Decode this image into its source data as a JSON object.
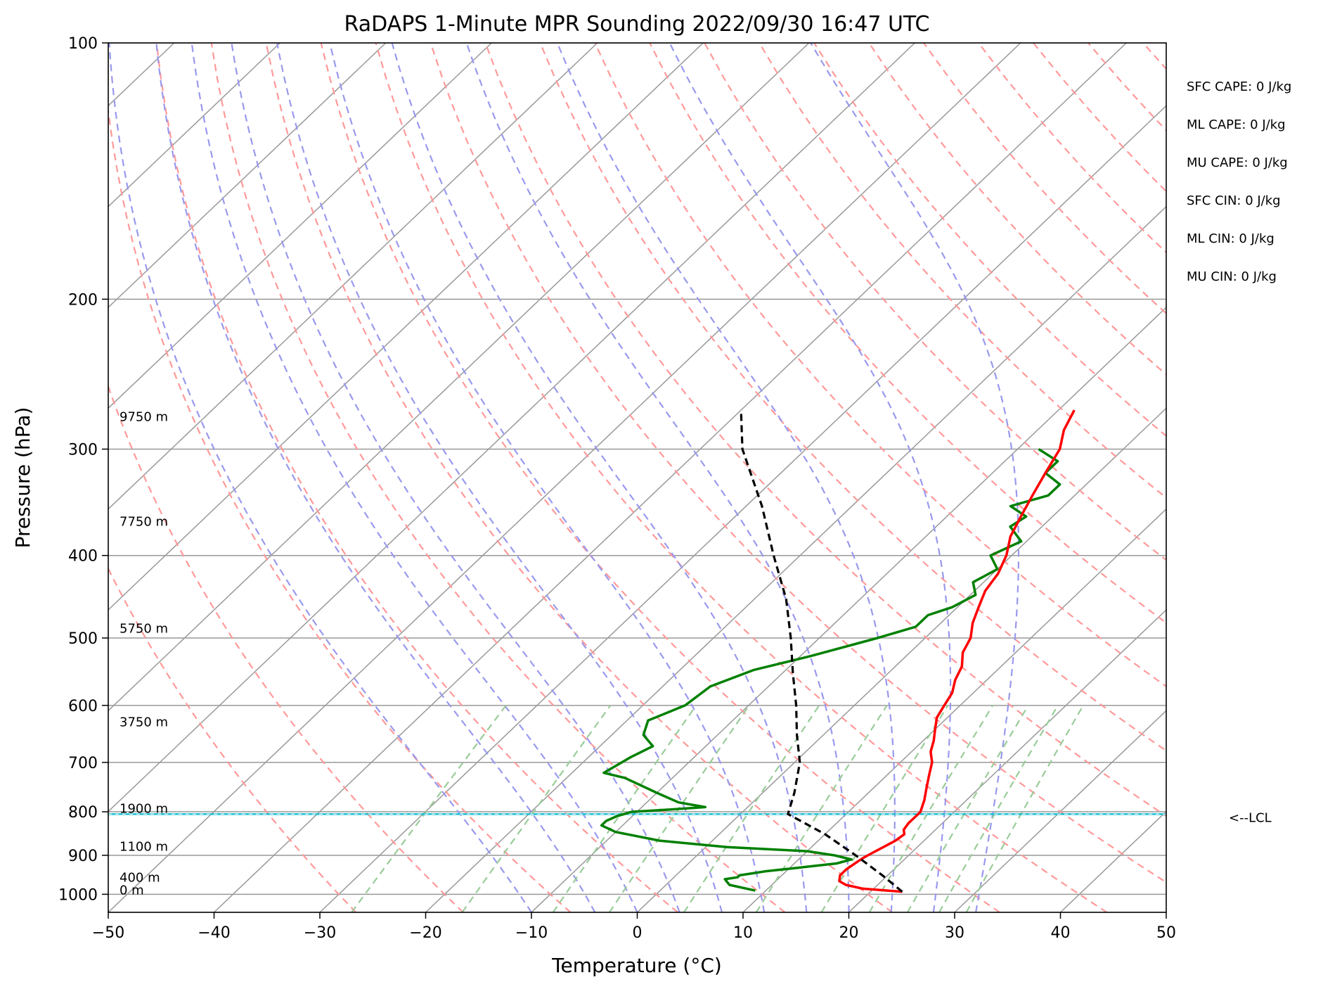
{
  "chart_data": {
    "type": "line",
    "diagram": "skew-t log-p",
    "title": "RaDAPS 1-Minute MPR Sounding 2022/09/30 16:47 UTC",
    "xlabel": "Temperature (°C)",
    "ylabel": "Pressure (hPa)",
    "xlim": [
      -50,
      50
    ],
    "ylim": [
      1050,
      100
    ],
    "y_scale": "log",
    "x_ticks": [
      -50,
      -40,
      -30,
      -20,
      -10,
      0,
      10,
      20,
      30,
      40,
      50
    ],
    "x_tick_labels": [
      "−50",
      "−40",
      "−30",
      "−20",
      "−10",
      "0",
      "10",
      "20",
      "30",
      "40",
      "50"
    ],
    "y_ticks": [
      100,
      200,
      300,
      400,
      500,
      600,
      700,
      800,
      900,
      1000
    ],
    "y_tick_labels": [
      "100",
      "200",
      "300",
      "400",
      "500",
      "600",
      "700",
      "800",
      "900",
      "1000"
    ],
    "grid": true,
    "colors": {
      "temperature": "#ff0000",
      "dewpoint": "#008000",
      "parcel": "#000000",
      "lcl": "#17becf",
      "isotherm": "#999999",
      "dry_adiabat": "#ff9999",
      "moist_adiabat": "#9999ee",
      "mixing_ratio": "#99cc99"
    },
    "series": [
      {
        "key": "temperature",
        "pressure": [
          993,
          990,
          985,
          975,
          965,
          950,
          935,
          915,
          905,
          895,
          880,
          865,
          850,
          840,
          825,
          810,
          800,
          775,
          750,
          725,
          700,
          680,
          660,
          640,
          620,
          600,
          580,
          560,
          540,
          520,
          500,
          480,
          460,
          440,
          420,
          400,
          380,
          360,
          340,
          320,
          300,
          285,
          270
        ],
        "temp": [
          23.0,
          21.5,
          19.0,
          17.0,
          16.0,
          15.5,
          15.5,
          15.8,
          16.0,
          16.3,
          16.8,
          17.3,
          17.5,
          17.0,
          16.8,
          16.8,
          16.8,
          16.0,
          15.0,
          14.0,
          13.0,
          11.8,
          11.0,
          10.0,
          9.0,
          8.5,
          8.0,
          7.0,
          6.3,
          5.0,
          4.3,
          3.0,
          2.0,
          1.0,
          0.5,
          -0.5,
          -2.0,
          -3.0,
          -4.0,
          -5.0,
          -6.0,
          -7.5,
          -8.5
        ]
      },
      {
        "key": "dewpoint",
        "pressure": [
          990,
          975,
          960,
          955,
          950,
          945,
          940,
          930,
          920,
          910,
          900,
          890,
          880,
          865,
          845,
          830,
          820,
          810,
          800,
          795,
          790,
          780,
          760,
          730,
          720,
          690,
          670,
          650,
          625,
          600,
          570,
          545,
          525,
          500,
          485,
          470,
          460,
          445,
          430,
          415,
          400,
          385,
          370,
          360,
          350,
          340,
          330,
          320,
          310,
          300
        ],
        "dewp": [
          9.0,
          6.0,
          5.0,
          6.0,
          6.0,
          7.0,
          8.0,
          11.0,
          14.0,
          15.0,
          13.0,
          10.0,
          2.0,
          -5.0,
          -10.0,
          -12.0,
          -12.0,
          -11.5,
          -10.5,
          -7.0,
          -4.0,
          -7.0,
          -10.0,
          -14.5,
          -17.0,
          -16.0,
          -15.0,
          -17.0,
          -18.0,
          -16.0,
          -15.5,
          -13.0,
          -9.0,
          -4.5,
          -2.0,
          -2.0,
          -0.5,
          0.5,
          -1.0,
          0.0,
          -2.0,
          -0.5,
          -3.0,
          -2.5,
          -5.0,
          -2.5,
          -2.5,
          -5.0,
          -5.0,
          -8.0
        ]
      },
      {
        "key": "parcel",
        "pressure": [
          993,
          950,
          900,
          850,
          805,
          760,
          700,
          650,
          600,
          550,
          500,
          450,
          400,
          350,
          300,
          270
        ],
        "temp": [
          23.0,
          19.5,
          15.0,
          10.0,
          4.5,
          3.0,
          0.5,
          -2.5,
          -5.5,
          -9.0,
          -12.7,
          -17.0,
          -22.5,
          -28.5,
          -36.0,
          -40.0
        ]
      }
    ],
    "lcl": {
      "pressure": 805,
      "label": "<--LCL"
    },
    "height_labels": [
      {
        "text": "9750 m",
        "pressure": 278
      },
      {
        "text": "7750 m",
        "pressure": 369
      },
      {
        "text": "5750 m",
        "pressure": 493
      },
      {
        "text": "3750 m",
        "pressure": 635
      },
      {
        "text": "1900 m",
        "pressure": 802
      },
      {
        "text": "1100 m",
        "pressure": 889
      },
      {
        "text": "400 m",
        "pressure": 967
      },
      {
        "text": "0 m",
        "pressure": 1000
      }
    ]
  },
  "stats": [
    {
      "label": "SFC CAPE: 0 J/kg"
    },
    {
      "label": "ML CAPE: 0 J/kg"
    },
    {
      "label": "MU CAPE: 0 J/kg"
    },
    {
      "label": "SFC CIN: 0 J/kg"
    },
    {
      "label": "ML CIN: 0 J/kg"
    },
    {
      "label": "MU CIN: 0 J/kg"
    }
  ]
}
